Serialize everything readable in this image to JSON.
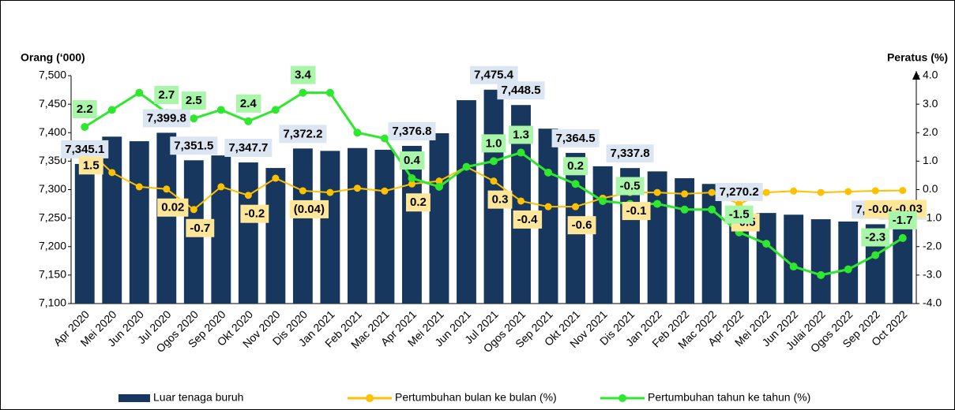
{
  "chart_data": {
    "type": "bar",
    "y_label": "Orang (‘000)",
    "y2_label": "Peratus (%)",
    "categories": [
      "Apr 2020",
      "Mei 2020",
      "Jun 2020",
      "Jul 2020",
      "Ogos 2020",
      "Sep 2020",
      "Okt 2020",
      "Nov 2020",
      "Dis 2020",
      "Jan 2021",
      "Feb 2021",
      "Mac 2021",
      "Apr 2021",
      "Mei 2021",
      "Jun 2021",
      "Jul 2021",
      "Ogos 2021",
      "Sep 2021",
      "Okt 2021",
      "Nov 2021",
      "Dis 2021",
      "Jan 2022",
      "Feb 2022",
      "Mac 2022",
      "Apr 2022",
      "Mei 2022",
      "Jun 2022",
      "Julai 2022",
      "Ogos 2022",
      "Sep 2022",
      "Oct 2022"
    ],
    "ylim": [
      7100,
      7500
    ],
    "yticks": [
      {
        "value": 7100,
        "label": "7,100"
      },
      {
        "value": 7150,
        "label": "7,150"
      },
      {
        "value": 7200,
        "label": "7,200"
      },
      {
        "value": 7250,
        "label": "7,250"
      },
      {
        "value": 7300,
        "label": "7,300"
      },
      {
        "value": 7350,
        "label": "7,350"
      },
      {
        "value": 7400,
        "label": "7,400"
      },
      {
        "value": 7450,
        "label": "7,450"
      },
      {
        "value": 7500,
        "label": "7,500"
      }
    ],
    "y2lim": [
      -4,
      4
    ],
    "y2ticks": [
      {
        "value": -4,
        "label": "-4.0"
      },
      {
        "value": -3,
        "label": "-3.0"
      },
      {
        "value": -2,
        "label": "-2.0"
      },
      {
        "value": -1,
        "label": "-1.0"
      },
      {
        "value": 0,
        "label": "0.0"
      },
      {
        "value": 1,
        "label": "1.0"
      },
      {
        "value": 2,
        "label": "2.0"
      },
      {
        "value": 3,
        "label": "3.0"
      },
      {
        "value": 4,
        "label": "4.0"
      }
    ],
    "legend": "bottom",
    "series": [
      {
        "name": "Luar tenaga buruh",
        "type": "bar",
        "color": "#17375e",
        "values": [
          7345.1,
          7393,
          7385,
          7399.8,
          7351.5,
          7360,
          7347.7,
          7338,
          7372.2,
          7368,
          7373,
          7370,
          7376.8,
          7399,
          7457,
          7475.4,
          7448.5,
          7407,
          7364.5,
          7341,
          7337.8,
          7332,
          7320,
          7310,
          7270.2,
          7259,
          7256,
          7248,
          7244,
          7239.2,
          7237.3
        ],
        "value_labels": [
          "7,345.1",
          null,
          null,
          "7,399.8",
          "7,351.5",
          null,
          "7,347.7",
          null,
          "7,372.2",
          null,
          null,
          null,
          "7,376.8",
          null,
          null,
          "7,475.4",
          "7,448.5",
          null,
          "7,364.5",
          null,
          "7,337.8",
          null,
          null,
          null,
          "7,270.2",
          null,
          null,
          null,
          null,
          "7,239.2",
          "7,237.3"
        ]
      },
      {
        "name": "Pertumbuhan bulan ke bulan (%)",
        "type": "line",
        "axis": "y2",
        "color": "#ffc000",
        "values": [
          1.5,
          0.6,
          0.1,
          0.02,
          -0.7,
          0.1,
          -0.2,
          0.4,
          -0.04,
          -0.1,
          0.05,
          -0.05,
          0.2,
          0.3,
          0.8,
          0.3,
          -0.4,
          -0.6,
          -0.6,
          -0.3,
          -0.1,
          -0.1,
          -0.15,
          -0.1,
          -0.5,
          -0.1,
          -0.05,
          -0.1,
          -0.07,
          -0.04,
          -0.03
        ],
        "value_labels": [
          "1.5",
          null,
          null,
          "0.02",
          "-0.7",
          null,
          "-0.2",
          null,
          "(0.04)",
          null,
          null,
          null,
          "0.2",
          null,
          null,
          "0.3",
          "-0.4",
          null,
          "-0.6",
          null,
          "-0.1",
          null,
          null,
          null,
          "-0.5",
          null,
          null,
          null,
          null,
          "-0.04",
          "-0.03"
        ]
      },
      {
        "name": "Pertumbuhan tahun ke tahun (%)",
        "type": "line",
        "axis": "y2",
        "color": "#2ee82e",
        "values": [
          2.2,
          2.8,
          3.4,
          2.7,
          2.5,
          2.8,
          2.4,
          2.8,
          3.4,
          3.4,
          2.0,
          1.8,
          0.4,
          0.1,
          0.8,
          1.0,
          1.3,
          0.6,
          0.2,
          -0.4,
          -0.5,
          -0.5,
          -0.7,
          -0.7,
          -1.5,
          -1.9,
          -2.7,
          -3.0,
          -2.8,
          -2.3,
          -1.7
        ],
        "value_labels": [
          "2.2",
          null,
          null,
          "2.7",
          "2.5",
          null,
          "2.4",
          null,
          "3.4",
          null,
          null,
          null,
          "0.4",
          null,
          null,
          "1.0",
          "1.3",
          null,
          "0.2",
          null,
          "-0.5",
          null,
          null,
          null,
          "-1.5",
          null,
          null,
          null,
          null,
          "-2.3",
          "-1.7"
        ]
      }
    ]
  }
}
